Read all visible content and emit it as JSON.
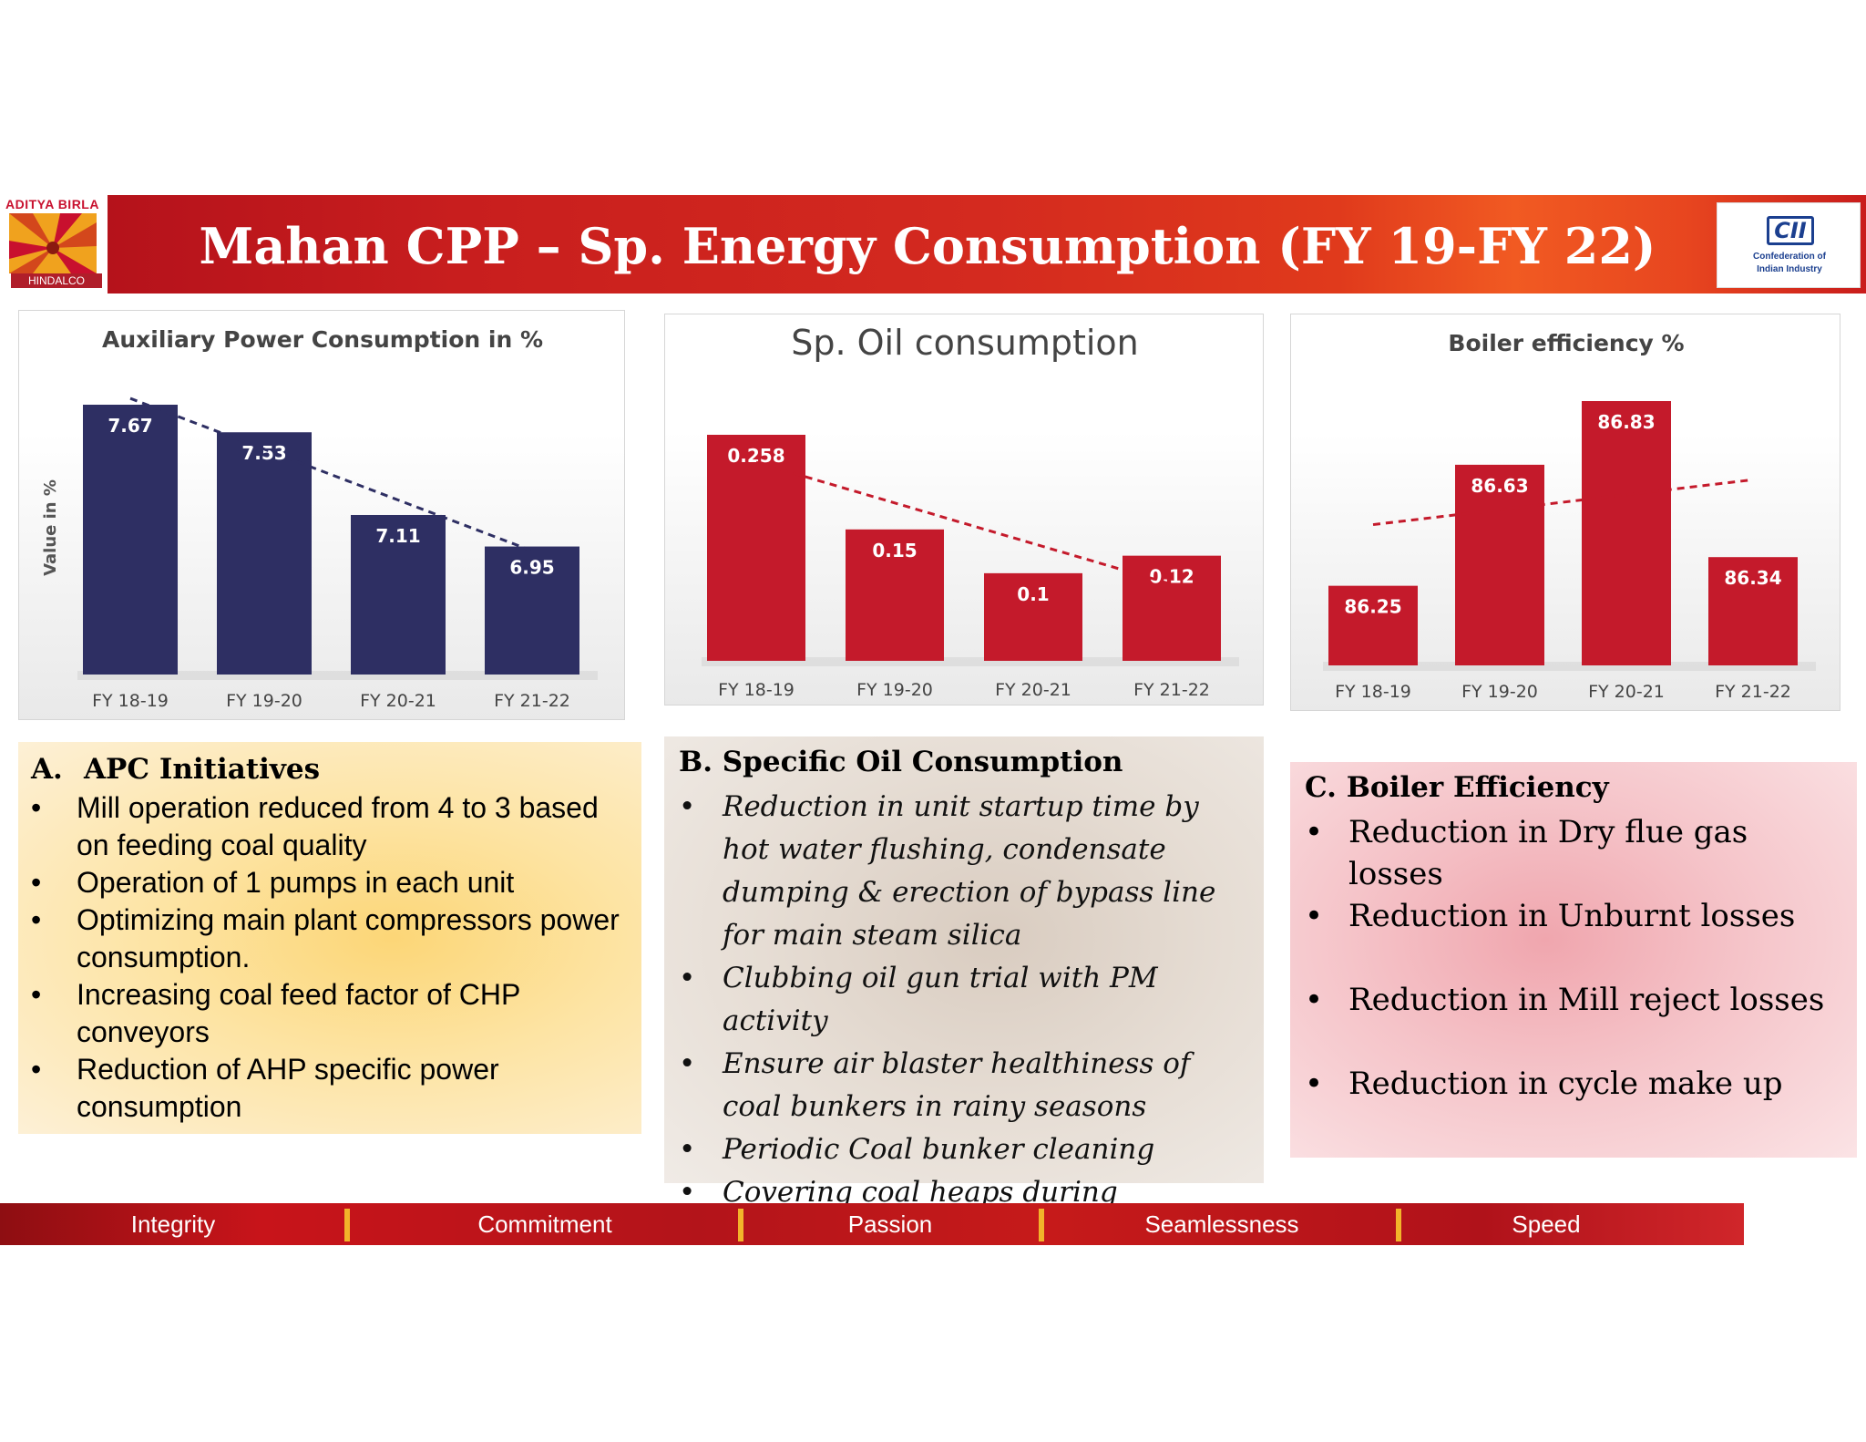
{
  "header": {
    "title": "Mahan CPP – Sp. Energy Consumption (FY 19-FY 22)",
    "left_logo": {
      "brand": "ADITYA BIRLA",
      "sub": "HINDALCO"
    },
    "right_logo": {
      "mark": "CII",
      "caption_line1": "Confederation of",
      "caption_line2": "Indian Industry"
    }
  },
  "colors": {
    "navy": "#2e2f63",
    "red": "#c41a2b",
    "banner": "#c81e1e",
    "gold": "#f2b42a"
  },
  "chart_data": [
    {
      "type": "bar",
      "title": "Auxiliary Power Consumption in %",
      "ylabel": "Value in %",
      "categories": [
        "FY 18-19",
        "FY 19-20",
        "FY 20-21",
        "FY 21-22"
      ],
      "values": [
        7.67,
        7.53,
        7.11,
        6.95
      ],
      "value_labels": [
        "7.67",
        "7.53",
        "7.11",
        "6.95"
      ],
      "trendline": true,
      "ylim": [
        6.3,
        7.67
      ],
      "color": "#2e2f63",
      "trend_color": "#2e2f63"
    },
    {
      "type": "bar",
      "title": "Sp. Oil consumption",
      "categories": [
        "FY 18-19",
        "FY 19-20",
        "FY 20-21",
        "FY 21-22"
      ],
      "values": [
        0.258,
        0.15,
        0.1,
        0.12
      ],
      "value_labels": [
        "0.258",
        "0.15",
        "0.1",
        "0.12"
      ],
      "trendline": true,
      "ylim": [
        0,
        0.258
      ],
      "color": "#c41a2b",
      "trend_color": "#c41a2b"
    },
    {
      "type": "bar",
      "title": "Boiler efficiency %",
      "categories": [
        "FY 18-19",
        "FY 19-20",
        "FY 20-21",
        "FY 21-22"
      ],
      "values": [
        86.25,
        86.63,
        86.83,
        86.34
      ],
      "value_labels": [
        "86.25",
        "86.63",
        "86.83",
        "86.34"
      ],
      "trendline": true,
      "ylim": [
        86.0,
        86.83
      ],
      "color": "#c41a2b",
      "trend_color": "#c41a2b"
    }
  ],
  "sections": {
    "a": {
      "letter": "A.",
      "title": "APC Initiatives",
      "bullet": "•",
      "items": [
        "Mill operation reduced from 4 to 3 based on feeding coal quality",
        "Operation of 1 pumps in each unit",
        "Optimizing main plant compressors power consumption.",
        "Increasing coal feed factor of CHP conveyors",
        "Reduction of AHP specific power consumption"
      ]
    },
    "b": {
      "title": "B. Specific Oil Consumption",
      "bullet": "•",
      "items": [
        "Reduction in unit startup time by hot water flushing, condensate dumping & erection of bypass line for main steam silica",
        "Clubbing oil gun trial with PM activity",
        "Ensure air blaster healthiness of coal bunkers in rainy seasons",
        "Periodic Coal bunker cleaning",
        "Covering coal heaps during monsoon"
      ]
    },
    "c": {
      "title": "C. Boiler Efficiency",
      "bullet": "•",
      "items": [
        "Reduction in Dry flue gas losses",
        "Reduction in Unburnt losses",
        "Reduction in Mill reject losses",
        "Reduction in cycle make up"
      ]
    }
  },
  "footer": {
    "values": [
      "Integrity",
      "Commitment",
      "Passion",
      "Seamlessness",
      "Speed"
    ]
  }
}
